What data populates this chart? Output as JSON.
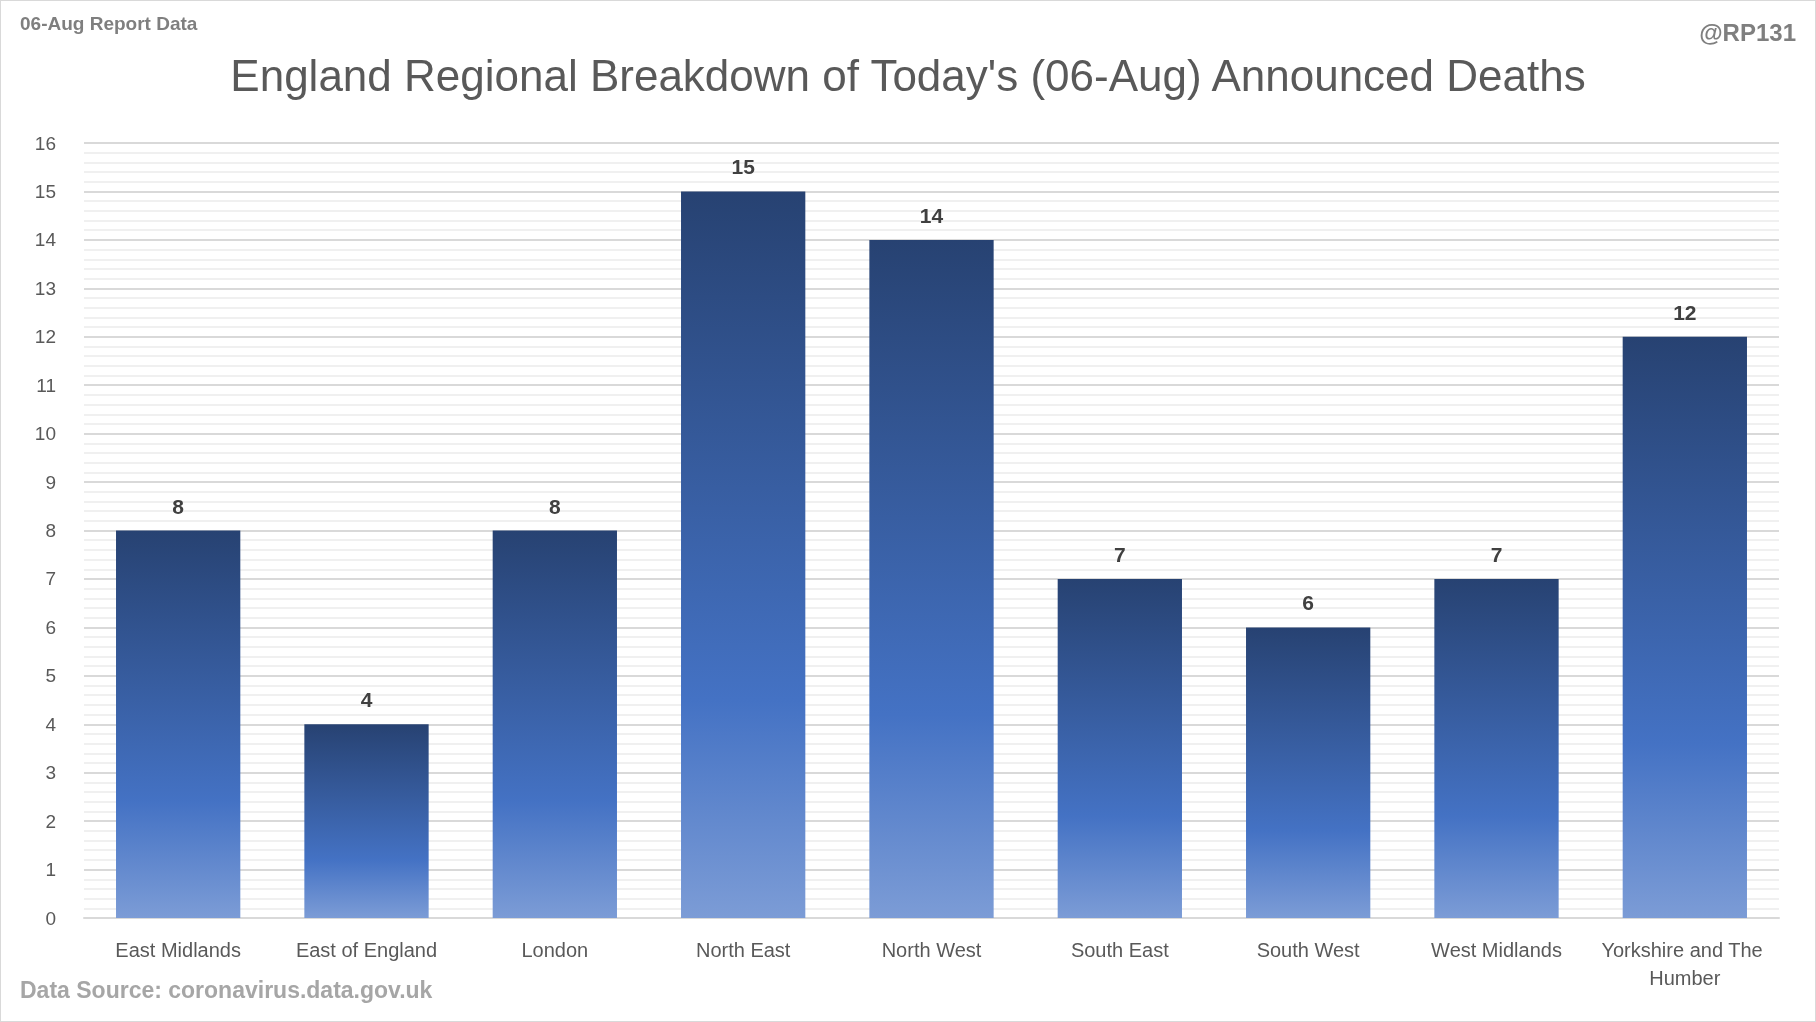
{
  "chart_data": {
    "type": "bar",
    "title": "England Regional Breakdown of Today's (06-Aug) Announced Deaths",
    "annotations": [
      "06-Aug Report Data",
      "@RP131",
      "Data Source: coronavirus.data.gov.uk"
    ],
    "categories": [
      "East Midlands",
      "East of England",
      "London",
      "North East",
      "North West",
      "South East",
      "South West",
      "West Midlands",
      "Yorkshire and The Humber"
    ],
    "values": [
      8,
      4,
      8,
      15,
      14,
      7,
      6,
      7,
      12
    ],
    "color": "#4472c4",
    "ylim": [
      0,
      16
    ],
    "yticks": [
      0,
      1,
      2,
      3,
      4,
      5,
      6,
      7,
      8,
      9,
      10,
      11,
      12,
      13,
      14,
      15,
      16
    ],
    "grid": "y",
    "data_labels": true
  }
}
